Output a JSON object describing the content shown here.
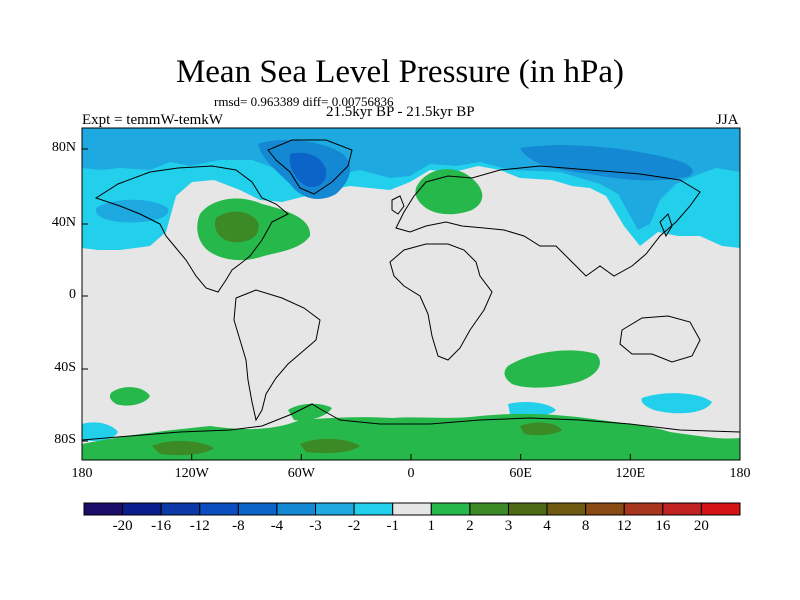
{
  "title": "Mean Sea Level Pressure (in hPa)",
  "stats": "rmsd= 0.963389 diff= 0.00756836",
  "experiment": "Expt = temmW-temkW",
  "period": "21.5kyr BP - 21.5kyr BP",
  "season": "JJA",
  "axes": {
    "lat_labels": [
      "80N",
      "40N",
      "0",
      "40S",
      "80S"
    ],
    "lon_labels": [
      "180",
      "120W",
      "60W",
      "0",
      "60E",
      "120E",
      "180"
    ]
  },
  "colorbar": {
    "labels": [
      "-20",
      "-16",
      "-12",
      "-8",
      "-4",
      "-3",
      "-2",
      "-1",
      "1",
      "2",
      "3",
      "4",
      "8",
      "12",
      "16",
      "20"
    ],
    "colors": [
      "#1c0d6b",
      "#0a1f8c",
      "#0b3aa8",
      "#0a4ec0",
      "#0c63c8",
      "#1488d2",
      "#1eaae0",
      "#22d0ec",
      "#e6e6e6",
      "#26b84a",
      "#3c8a26",
      "#4e6a14",
      "#6e5a10",
      "#8a4a14",
      "#a8361c",
      "#c02222",
      "#d41414"
    ]
  },
  "palette": {
    "background": "#e6e6e6",
    "low_1": "#22d0ec",
    "low_2": "#1eaae0",
    "low_3": "#1488d2",
    "low_4": "#0c63c8",
    "high_1": "#26b84a",
    "high_2": "#3c8a26",
    "high_3": "#6e5a10"
  }
}
